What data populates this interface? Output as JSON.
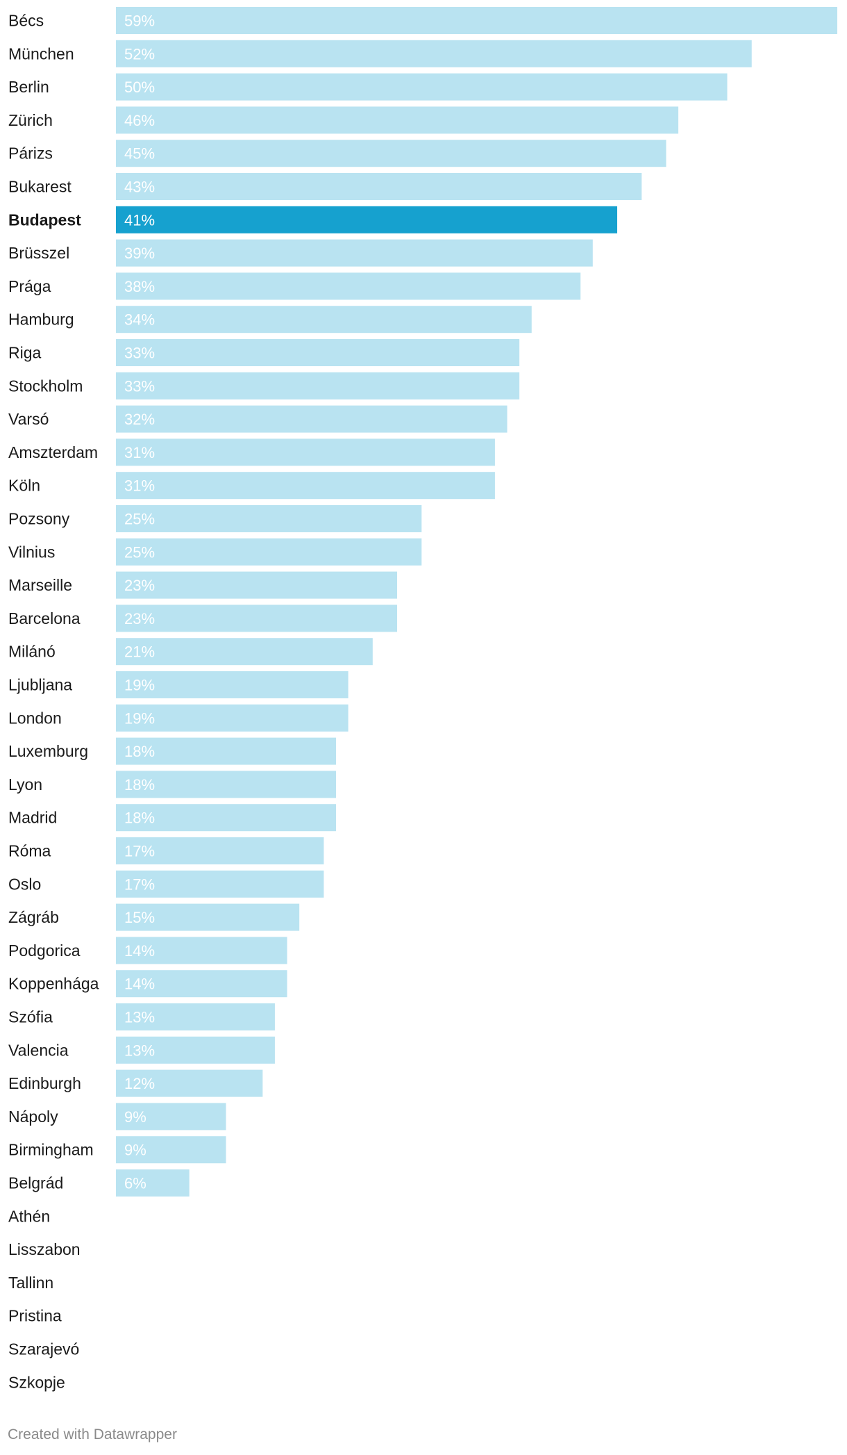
{
  "chart_data": {
    "type": "bar",
    "orientation": "horizontal",
    "categories": [
      "Bécs",
      "München",
      "Berlin",
      "Zürich",
      "Párizs",
      "Bukarest",
      "Budapest",
      "Brüsszel",
      "Prága",
      "Hamburg",
      "Riga",
      "Stockholm",
      "Varsó",
      "Amszterdam",
      "Köln",
      "Pozsony",
      "Vilnius",
      "Marseille",
      "Barcelona",
      "Milánó",
      "Ljubljana",
      "London",
      "Luxemburg",
      "Lyon",
      "Madrid",
      "Róma",
      "Oslo",
      "Zágráb",
      "Podgorica",
      "Koppenhága",
      "Szófia",
      "Valencia",
      "Edinburgh",
      "Nápoly",
      "Birmingham",
      "Belgrád",
      "Athén",
      "Lisszabon",
      "Tallinn",
      "Pristina",
      "Szarajevó",
      "Szkopje"
    ],
    "values": [
      59,
      52,
      50,
      46,
      45,
      43,
      41,
      39,
      38,
      34,
      33,
      33,
      32,
      31,
      31,
      25,
      25,
      23,
      23,
      21,
      19,
      19,
      18,
      18,
      18,
      17,
      17,
      15,
      14,
      14,
      13,
      13,
      12,
      9,
      9,
      6,
      null,
      null,
      null,
      null,
      null,
      null
    ],
    "value_labels": [
      "59%",
      "52%",
      "50%",
      "46%",
      "45%",
      "43%",
      "41%",
      "39%",
      "38%",
      "34%",
      "33%",
      "33%",
      "32%",
      "31%",
      "31%",
      "25%",
      "25%",
      "23%",
      "23%",
      "21%",
      "19%",
      "19%",
      "18%",
      "18%",
      "18%",
      "17%",
      "17%",
      "15%",
      "14%",
      "14%",
      "13%",
      "13%",
      "12%",
      "9%",
      "9%",
      "6%",
      "",
      "",
      "",
      "",
      "",
      ""
    ],
    "highlight": "Budapest",
    "xlim": [
      0,
      59
    ],
    "unit": "%",
    "colors": {
      "bar": "#b9e3f1",
      "highlight": "#16a1cf",
      "value_text": "#ffffff"
    },
    "title": "",
    "xlabel": "",
    "ylabel": ""
  },
  "footer": {
    "credit": "Created with Datawrapper"
  }
}
